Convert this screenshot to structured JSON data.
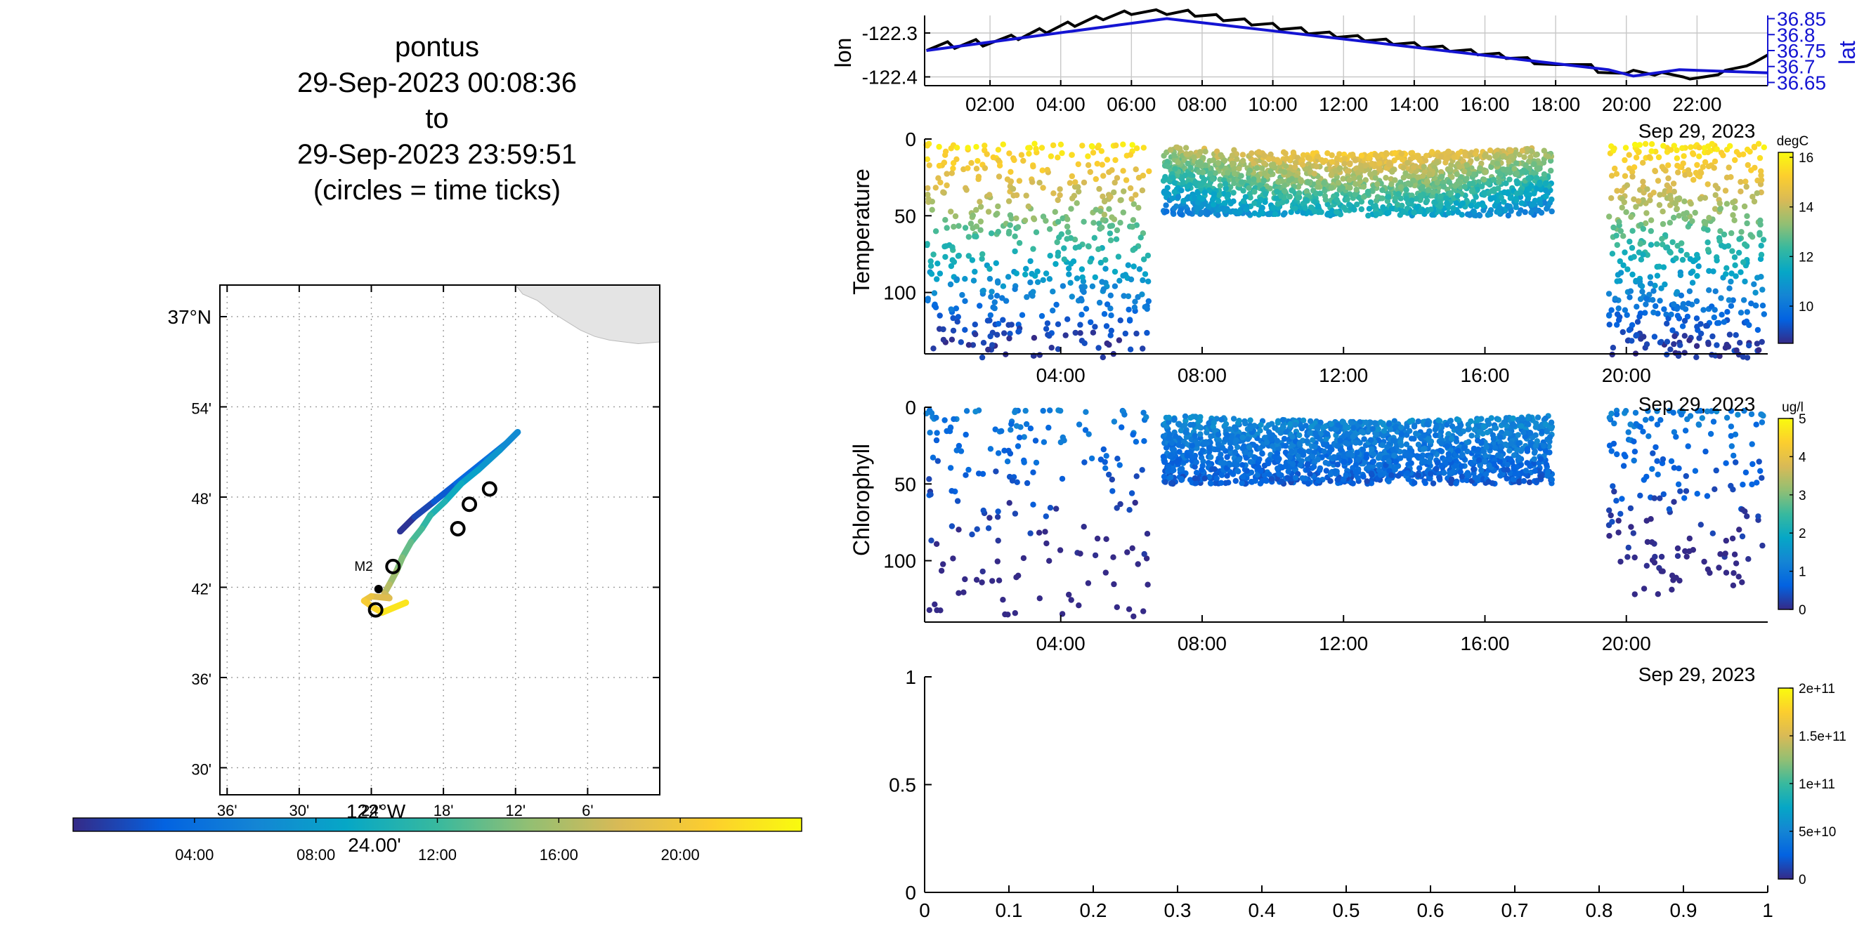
{
  "title": {
    "lines": [
      "pontus",
      "29-Sep-2023 00:08:36",
      "to",
      "29-Sep-2023 23:59:51",
      "(circles = time ticks)"
    ]
  },
  "colors": {
    "parula": [
      "#352a87",
      "#0363e1",
      "#1485d4",
      "#06a7c6",
      "#38b99e",
      "#92bf73",
      "#d9ba56",
      "#fcce2e",
      "#f9fb0e"
    ],
    "lon_line": "#000000",
    "lat_line": "#1414d2",
    "land": "#e4e4e4"
  },
  "chart_data": [
    {
      "id": "map",
      "type": "scatter",
      "title": "",
      "lat_ticks": [
        "37°N",
        "54'",
        "48'",
        "42'",
        "36'",
        "30'"
      ],
      "lat_tick_values": [
        37.0,
        36.9,
        36.8,
        36.7,
        36.6,
        36.5
      ],
      "lon_ticks": [
        "36'",
        "30'",
        "24'",
        "18'",
        "12'",
        "6'"
      ],
      "lon_tick_values": [
        -122.6,
        -122.5,
        -122.4,
        -122.3,
        -122.2,
        -122.1
      ],
      "lon_center_label": "122°W",
      "xlim": [
        -122.61,
        -122.0
      ],
      "ylim": [
        36.47,
        37.035
      ],
      "marker": {
        "label": "M2",
        "lon": -122.39,
        "lat": 36.698
      },
      "track": [
        {
          "t": 0.5,
          "lon": -122.36,
          "lat": 36.762
        },
        {
          "t": 1.5,
          "lon": -122.34,
          "lat": 36.778
        },
        {
          "t": 2.5,
          "lon": -122.313,
          "lat": 36.795
        },
        {
          "t": 3.5,
          "lon": -122.282,
          "lat": 36.815
        },
        {
          "t": 4.5,
          "lon": -122.24,
          "lat": 36.842
        },
        {
          "t": 5.5,
          "lon": -122.212,
          "lat": 36.86
        },
        {
          "t": 6.5,
          "lon": -122.197,
          "lat": 36.872
        },
        {
          "t": 7.5,
          "lon": -122.222,
          "lat": 36.852
        },
        {
          "t": 8.5,
          "lon": -122.252,
          "lat": 36.83
        },
        {
          "t": 9.5,
          "lon": -122.275,
          "lat": 36.815
        },
        {
          "t": 10.5,
          "lon": -122.298,
          "lat": 36.795
        },
        {
          "t": 11.5,
          "lon": -122.318,
          "lat": 36.78
        },
        {
          "t": 12.5,
          "lon": -122.33,
          "lat": 36.765
        },
        {
          "t": 13.5,
          "lon": -122.345,
          "lat": 36.75
        },
        {
          "t": 14.5,
          "lon": -122.357,
          "lat": 36.733
        },
        {
          "t": 15.5,
          "lon": -122.365,
          "lat": 36.718
        },
        {
          "t": 16.5,
          "lon": -122.375,
          "lat": 36.703
        },
        {
          "t": 17.5,
          "lon": -122.382,
          "lat": 36.693
        },
        {
          "t": 18.5,
          "lon": -122.375,
          "lat": 36.688
        },
        {
          "t": 19.5,
          "lon": -122.4,
          "lat": 36.69
        },
        {
          "t": 20.5,
          "lon": -122.41,
          "lat": 36.685
        },
        {
          "t": 21.5,
          "lon": -122.398,
          "lat": 36.678
        },
        {
          "t": 22.5,
          "lon": -122.385,
          "lat": 36.672
        },
        {
          "t": 23.5,
          "lon": -122.352,
          "lat": 36.683
        }
      ],
      "time_ticks": [
        {
          "lon": -122.236,
          "lat": 36.809
        },
        {
          "lon": -122.264,
          "lat": 36.792
        },
        {
          "lon": -122.28,
          "lat": 36.765
        },
        {
          "lon": -122.37,
          "lat": 36.723
        },
        {
          "lon": -122.394,
          "lat": 36.675
        }
      ],
      "colorbar": {
        "ticks": [
          "04:00",
          "08:00",
          "12:00",
          "16:00",
          "20:00"
        ],
        "tick_values": [
          4,
          8,
          12,
          16,
          20
        ],
        "range": [
          0,
          24
        ],
        "label": "24.00'"
      }
    },
    {
      "id": "lonlat",
      "type": "line",
      "ylabel": "lon",
      "ylabel_right": "lat",
      "x_ticks": [
        "02:00",
        "04:00",
        "06:00",
        "08:00",
        "10:00",
        "12:00",
        "14:00",
        "16:00",
        "18:00",
        "20:00",
        "22:00"
      ],
      "x_tick_values": [
        2,
        4,
        6,
        8,
        10,
        12,
        14,
        16,
        18,
        20,
        22
      ],
      "xlim": [
        0.15,
        24.0
      ],
      "ylim_left": [
        -122.42,
        -122.26
      ],
      "y_ticks_left": [
        "-122.3",
        "-122.4"
      ],
      "y_tick_values_left": [
        -122.3,
        -122.4
      ],
      "ylim_right": [
        36.64,
        36.86
      ],
      "y_ticks_right": [
        "36.85",
        "36.8",
        "36.75",
        "36.7",
        "36.65"
      ],
      "y_tick_values_right": [
        36.85,
        36.8,
        36.75,
        36.7,
        36.65
      ],
      "series": [
        {
          "axis": "left",
          "x": [
            0.2,
            0.8,
            1.0,
            1.6,
            1.8,
            2.6,
            2.8,
            3.4,
            3.6,
            4.2,
            4.4,
            5.0,
            5.2,
            5.8,
            6.0,
            6.7,
            7.0,
            7.6,
            7.8,
            8.4,
            8.6,
            9.2,
            9.4,
            10.0,
            10.2,
            10.8,
            11.0,
            11.6,
            11.8,
            12.4,
            12.6,
            13.2,
            13.4,
            14.0,
            14.2,
            14.8,
            15.0,
            15.6,
            15.8,
            16.4,
            16.6,
            17.2,
            17.4,
            18.0,
            18.2,
            19.0,
            19.2,
            20.0,
            20.2,
            20.8,
            21.0,
            21.6,
            21.8,
            22.6,
            22.8,
            23.4,
            23.6,
            24.0
          ],
          "y": [
            -122.34,
            -122.32,
            -122.335,
            -122.315,
            -122.33,
            -122.305,
            -122.315,
            -122.29,
            -122.3,
            -122.275,
            -122.285,
            -122.262,
            -122.27,
            -122.25,
            -122.258,
            -122.247,
            -122.258,
            -122.248,
            -122.262,
            -122.258,
            -122.272,
            -122.268,
            -122.282,
            -122.278,
            -122.292,
            -122.288,
            -122.302,
            -122.298,
            -122.31,
            -122.306,
            -122.318,
            -122.314,
            -122.326,
            -122.322,
            -122.334,
            -122.33,
            -122.342,
            -122.338,
            -122.35,
            -122.346,
            -122.358,
            -122.356,
            -122.37,
            -122.372,
            -122.372,
            -122.372,
            -122.39,
            -122.392,
            -122.385,
            -122.396,
            -122.39,
            -122.4,
            -122.405,
            -122.395,
            -122.385,
            -122.375,
            -122.368,
            -122.35
          ]
        },
        {
          "axis": "right",
          "x": [
            0.2,
            7.0,
            19.5,
            20.2,
            21.5,
            24.0
          ],
          "y": [
            36.75,
            36.85,
            36.69,
            36.67,
            36.69,
            36.68
          ]
        }
      ]
    },
    {
      "id": "temperature",
      "type": "scatter",
      "ylabel": "Temperature",
      "x_ticks": [
        "04:00",
        "08:00",
        "12:00",
        "16:00",
        "20:00"
      ],
      "x_tick_values": [
        4,
        8,
        12,
        16,
        20
      ],
      "xlim": [
        0.15,
        24.0
      ],
      "ylim": [
        0,
        140
      ],
      "y_ticks": [
        "0",
        "50",
        "100"
      ],
      "y_tick_values": [
        0,
        50,
        100
      ],
      "date_label": "Sep 29, 2023",
      "colorbar": {
        "label": "degC",
        "ticks": [
          "16",
          "14",
          "12",
          "10"
        ],
        "tick_values": [
          16,
          14,
          12,
          10
        ],
        "range": [
          8.5,
          16.2
        ]
      },
      "segments": [
        {
          "t0": 0.2,
          "t1": 6.5,
          "pattern": "dive",
          "max_depth": 140
        },
        {
          "t0": 6.9,
          "t1": 17.9,
          "pattern": "shallow",
          "max_depth": 50
        },
        {
          "t0": 19.5,
          "t1": 23.9,
          "pattern": "dive",
          "max_depth": 140
        }
      ]
    },
    {
      "id": "chlorophyll",
      "type": "scatter",
      "ylabel": "Chlorophyll",
      "x_ticks": [
        "04:00",
        "08:00",
        "12:00",
        "16:00",
        "20:00"
      ],
      "x_tick_values": [
        4,
        8,
        12,
        16,
        20
      ],
      "xlim": [
        0.15,
        24.0
      ],
      "ylim": [
        0,
        140
      ],
      "y_ticks": [
        "0",
        "50",
        "100"
      ],
      "y_tick_values": [
        0,
        50,
        100
      ],
      "date_label": "Sep 29, 2023",
      "colorbar": {
        "label": "ug/l",
        "ticks": [
          "5",
          "4",
          "3",
          "2",
          "1",
          "0"
        ],
        "tick_values": [
          5,
          4,
          3,
          2,
          1,
          0
        ],
        "range": [
          0,
          5
        ]
      },
      "segments": [
        {
          "t0": 0.2,
          "t1": 6.5,
          "pattern": "sparse",
          "max_depth": 135
        },
        {
          "t0": 6.9,
          "t1": 17.9,
          "pattern": "shallow",
          "max_depth": 50
        },
        {
          "t0": 19.5,
          "t1": 23.9,
          "pattern": "sparse",
          "max_depth": 120
        }
      ]
    },
    {
      "id": "empty",
      "type": "scatter",
      "x_ticks": [
        "0",
        "0.1",
        "0.2",
        "0.3",
        "0.4",
        "0.5",
        "0.6",
        "0.7",
        "0.8",
        "0.9",
        "1"
      ],
      "x_tick_values": [
        0,
        0.1,
        0.2,
        0.3,
        0.4,
        0.5,
        0.6,
        0.7,
        0.8,
        0.9,
        1
      ],
      "xlim": [
        0,
        1
      ],
      "ylim": [
        0,
        1
      ],
      "y_ticks": [
        "1",
        "0.5",
        "0"
      ],
      "y_tick_values": [
        1,
        0.5,
        0
      ],
      "colorbar": {
        "ticks": [
          "2e+11",
          "1.5e+11",
          "1e+11",
          "5e+10",
          "0"
        ],
        "tick_values": [
          200000000000.0,
          150000000000.0,
          100000000000.0,
          50000000000.0,
          0
        ],
        "range": [
          0,
          200000000000.0
        ]
      }
    }
  ]
}
